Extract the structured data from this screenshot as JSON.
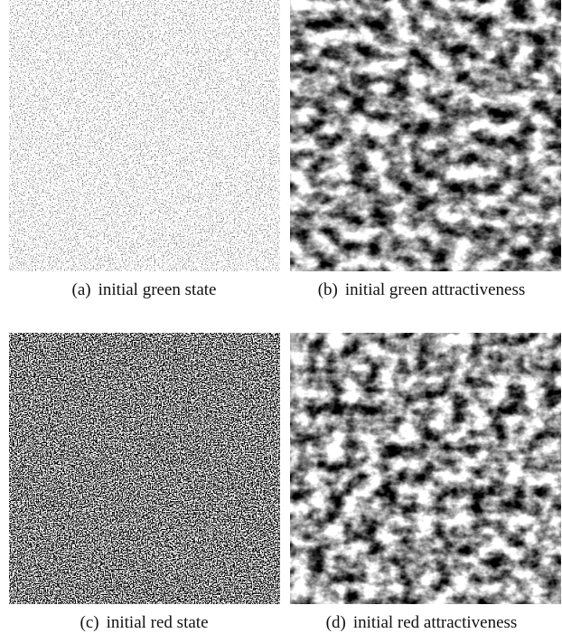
{
  "figures": [
    {
      "label": "(a)",
      "caption": "initial green state"
    },
    {
      "label": "(b)",
      "caption": "initial green attractiveness"
    },
    {
      "label": "(c)",
      "caption": "initial red state"
    },
    {
      "label": "(d)",
      "caption": "initial red attractiveness"
    }
  ]
}
